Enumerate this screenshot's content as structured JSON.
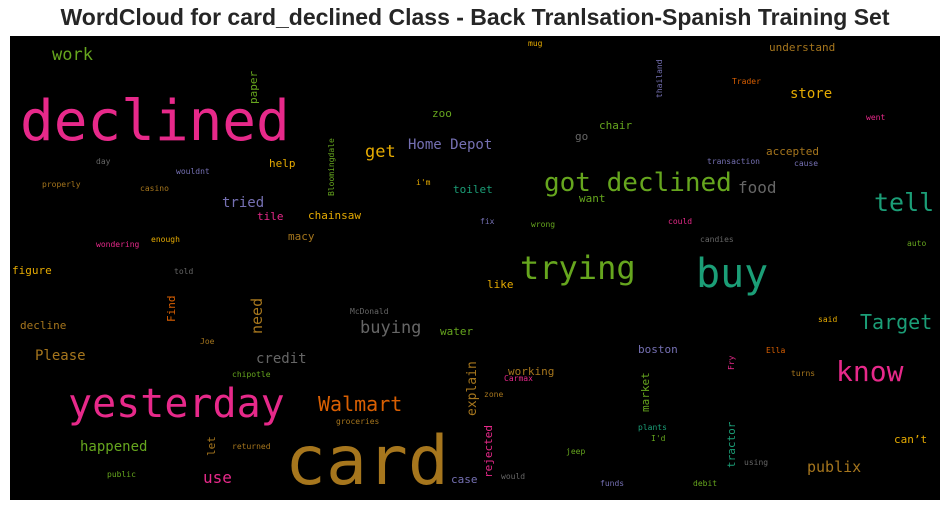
{
  "title": "WordCloud for card_declined Class - Back Tranlsation-Spanish Training Set",
  "colors": {
    "pink": "#e7298a",
    "orange": "#d95f02",
    "gold": "#e6ab02",
    "brown": "#a6761d",
    "green": "#66a61e",
    "teal": "#1b9e77",
    "purple": "#7570b3",
    "gray": "#666666"
  },
  "words": [
    {
      "text": "card"
    },
    {
      "text": "declined"
    },
    {
      "text": "yesterday"
    },
    {
      "text": "buy"
    },
    {
      "text": "trying"
    },
    {
      "text": "got declined"
    },
    {
      "text": "know"
    },
    {
      "text": "tell"
    },
    {
      "text": "Target"
    },
    {
      "text": "Walmart"
    },
    {
      "text": "work"
    },
    {
      "text": "food"
    },
    {
      "text": "get"
    },
    {
      "text": "Home Depot"
    },
    {
      "text": "buying"
    },
    {
      "text": "store"
    },
    {
      "text": "tried"
    },
    {
      "text": "Please"
    },
    {
      "text": "credit"
    },
    {
      "text": "happened"
    },
    {
      "text": "use"
    },
    {
      "text": "publix"
    },
    {
      "text": "need"
    },
    {
      "text": "explain"
    },
    {
      "text": "understand"
    },
    {
      "text": "paper"
    },
    {
      "text": "zoo"
    },
    {
      "text": "chair"
    },
    {
      "text": "go"
    },
    {
      "text": "accepted"
    },
    {
      "text": "help"
    },
    {
      "text": "toilet"
    },
    {
      "text": "want"
    },
    {
      "text": "chainsaw"
    },
    {
      "text": "tile"
    },
    {
      "text": "macy"
    },
    {
      "text": "figure"
    },
    {
      "text": "decline"
    },
    {
      "text": "like"
    },
    {
      "text": "water"
    },
    {
      "text": "working"
    },
    {
      "text": "boston"
    },
    {
      "text": "market"
    },
    {
      "text": "tractor"
    },
    {
      "text": "can’t"
    },
    {
      "text": "rejected"
    },
    {
      "text": "case"
    },
    {
      "text": "let"
    },
    {
      "text": "Find"
    },
    {
      "text": "Bloomingdale"
    },
    {
      "text": "thailand"
    },
    {
      "text": "mug"
    },
    {
      "text": "Trader"
    },
    {
      "text": "went"
    },
    {
      "text": "transaction"
    },
    {
      "text": "cause"
    },
    {
      "text": "day"
    },
    {
      "text": "wouldnt"
    },
    {
      "text": "properly"
    },
    {
      "text": "casino"
    },
    {
      "text": "i'm"
    },
    {
      "text": "fix"
    },
    {
      "text": "wrong"
    },
    {
      "text": "could"
    },
    {
      "text": "candies"
    },
    {
      "text": "auto"
    },
    {
      "text": "wondering"
    },
    {
      "text": "enough"
    },
    {
      "text": "told"
    },
    {
      "text": "McDonald"
    },
    {
      "text": "said"
    },
    {
      "text": "Joe"
    },
    {
      "text": "Ella"
    },
    {
      "text": "Fry"
    },
    {
      "text": "chipotle"
    },
    {
      "text": "Carmax"
    },
    {
      "text": "turns"
    },
    {
      "text": "zone"
    },
    {
      "text": "groceries"
    },
    {
      "text": "plants"
    },
    {
      "text": "I'd"
    },
    {
      "text": "returned"
    },
    {
      "text": "jeep"
    },
    {
      "text": "using"
    },
    {
      "text": "public"
    },
    {
      "text": "would"
    },
    {
      "text": "funds"
    },
    {
      "text": "debit"
    }
  ]
}
